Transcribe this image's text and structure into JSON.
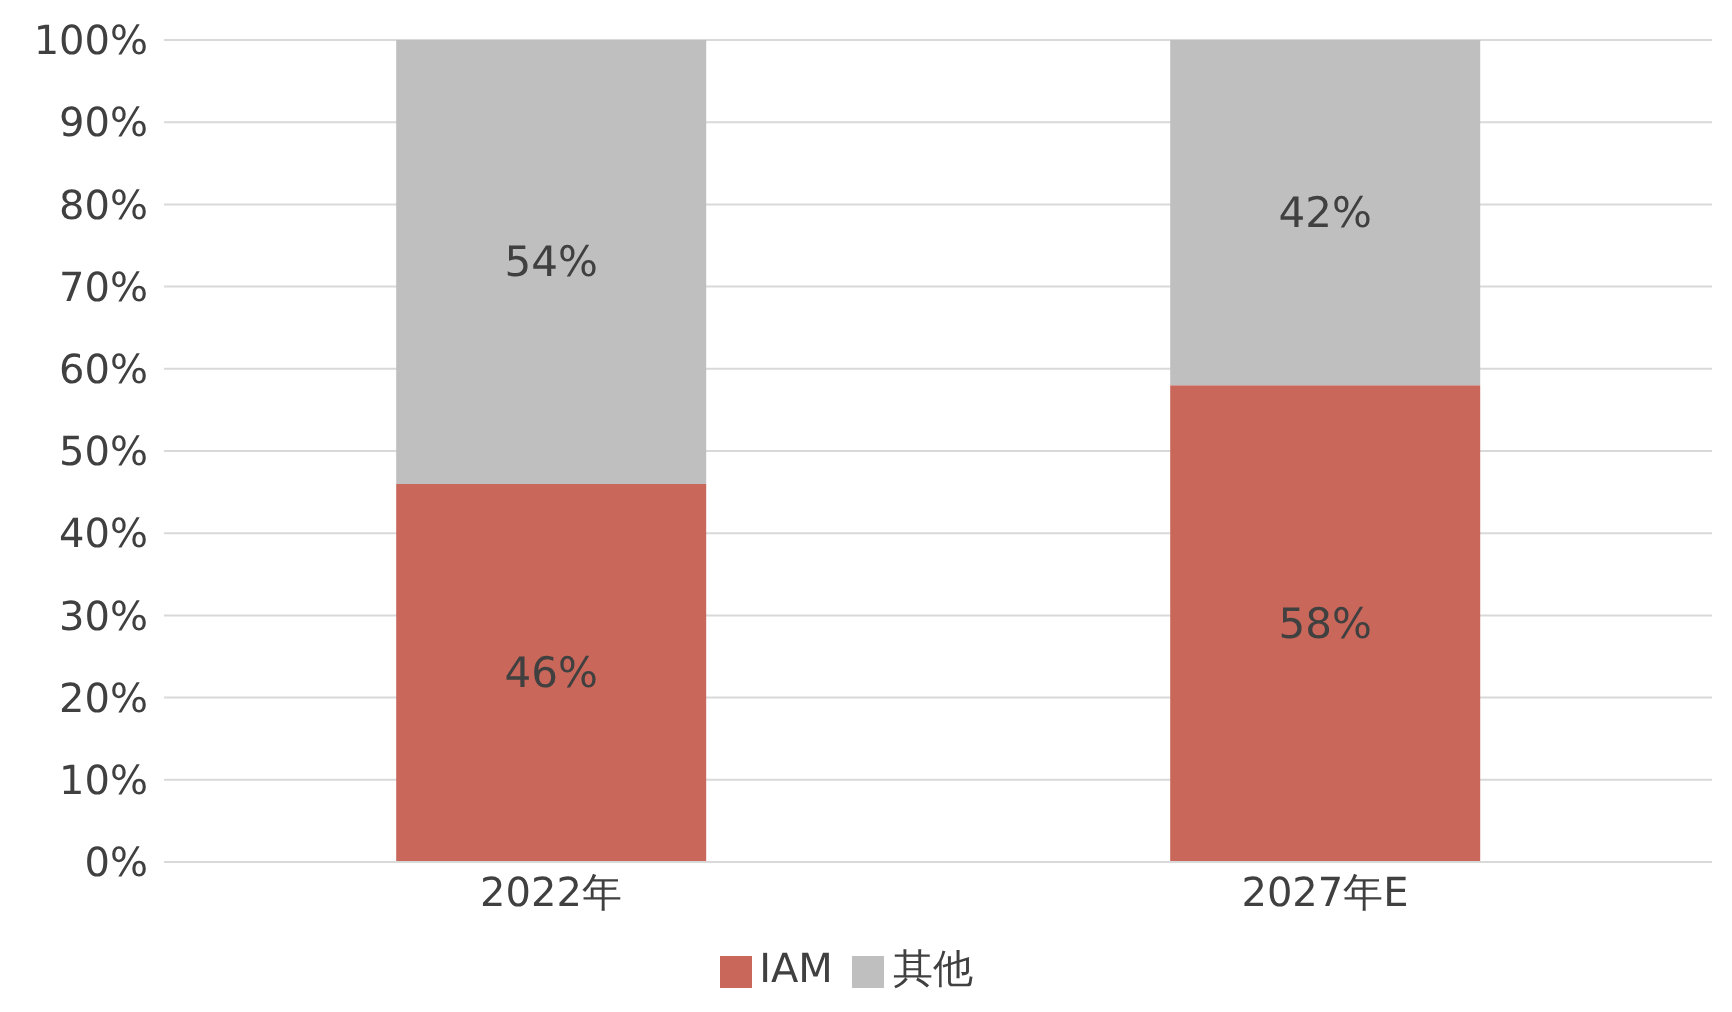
{
  "chart_data": {
    "type": "bar",
    "stacked": true,
    "categories": [
      "2022年",
      "2027年E"
    ],
    "series": [
      {
        "name": "IAM",
        "color": "#c8675a",
        "values": [
          46,
          58
        ],
        "value_labels": [
          "46%",
          "58%"
        ]
      },
      {
        "name": "其他",
        "color": "#bfbfbf",
        "values": [
          54,
          42
        ],
        "value_labels": [
          "54%",
          "42%"
        ]
      }
    ],
    "ylim": [
      0,
      100
    ],
    "yticks": [
      {
        "value": 0,
        "label": "0%"
      },
      {
        "value": 10,
        "label": "10%"
      },
      {
        "value": 20,
        "label": "20%"
      },
      {
        "value": 30,
        "label": "30%"
      },
      {
        "value": 40,
        "label": "40%"
      },
      {
        "value": 50,
        "label": "50%"
      },
      {
        "value": 60,
        "label": "60%"
      },
      {
        "value": 70,
        "label": "70%"
      },
      {
        "value": 80,
        "label": "80%"
      },
      {
        "value": 90,
        "label": "90%"
      },
      {
        "value": 100,
        "label": "100%"
      }
    ],
    "grid": "y",
    "legend": "bottom"
  }
}
